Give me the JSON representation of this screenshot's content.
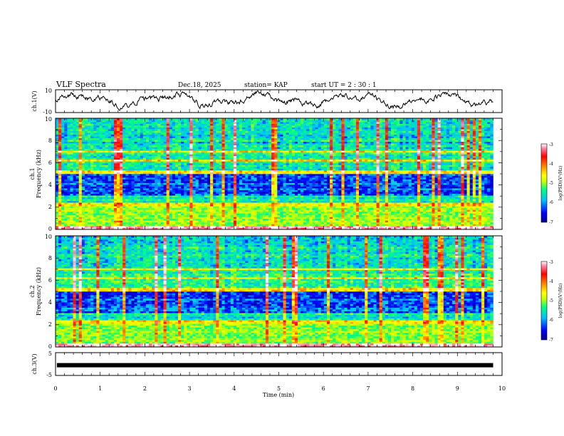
{
  "header": {
    "title": "VLF Spectra",
    "date": "Dec.18, 2025",
    "station": "station= KAP",
    "start": "start  UT  =   2  : 30 : 1"
  },
  "chart_data": [
    {
      "type": "line",
      "panel": "ch1-waveform",
      "ylabel": "ch.1(V)",
      "ylim": [
        -10,
        10
      ],
      "ytick_labels": [
        "10",
        "-10"
      ],
      "xlim": [
        0,
        10
      ],
      "description_values": "noisy waveform fluctuating roughly between -5 and 7 V over 0 to 9.8 min"
    },
    {
      "type": "heatmap",
      "panel": "ch1-spectrogram",
      "ylabel_line1": "ch.1",
      "ylabel_line2": "Frequency (kHz)",
      "ylim": [
        0,
        10
      ],
      "ytick_labels": [
        "0",
        "2",
        "4",
        "6",
        "8",
        "10"
      ],
      "xlim": [
        0,
        9.8
      ],
      "colorbar": {
        "label": "log(PSD)(V²/Hz)",
        "range": [
          -7,
          -3
        ],
        "tick_labels": [
          "-3",
          "-4",
          "-5",
          "-6",
          "-7"
        ]
      }
    },
    {
      "type": "heatmap",
      "panel": "ch2-spectrogram",
      "ylabel_line1": "ch.2",
      "ylabel_line2": "Frequency (kHz)",
      "ylim": [
        0,
        10
      ],
      "ytick_labels": [
        "0",
        "2",
        "4",
        "6",
        "8",
        "10"
      ],
      "xlim": [
        0,
        9.8
      ],
      "colorbar": {
        "label": "log(PSD)(V²/Hz)",
        "range": [
          -7,
          -3
        ],
        "tick_labels": [
          "-3",
          "-4",
          "-5",
          "-6",
          "-7"
        ]
      }
    },
    {
      "type": "line",
      "panel": "ch3-waveform",
      "ylabel": "ch.3(V)",
      "ylim": [
        -5,
        5
      ],
      "ytick_labels": [
        "5",
        "-5"
      ],
      "xlim": [
        0,
        10
      ],
      "constant_value": -0.5,
      "xlabel": "Time  (min)",
      "xtick_labels": [
        "0",
        "1",
        "2",
        "3",
        "4",
        "5",
        "6",
        "7",
        "8",
        "9",
        "10"
      ]
    }
  ],
  "colors": {
    "colormap": [
      "#00008c",
      "#0000ff",
      "#00c0ff",
      "#00ff80",
      "#c8ff00",
      "#ffff00",
      "#ff8000",
      "#ff0000",
      "#ff80a0",
      "#ffffff"
    ],
    "frame": "#000000",
    "trace": "#000000"
  }
}
